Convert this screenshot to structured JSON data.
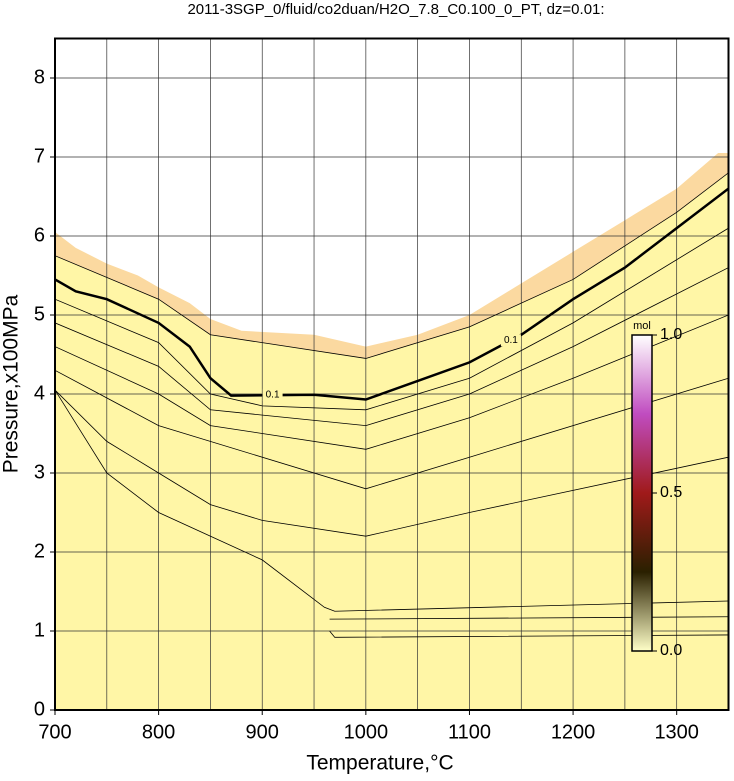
{
  "chart_data": {
    "type": "contour",
    "title": "2011-3SGP_0/fluid/co2duan/H2O_7.8_C0.100_0_PT, dz=0.01:",
    "x_label": "Temperature,°C",
    "y_label": "Pressure,x100MPa",
    "xlim": [
      700,
      1350
    ],
    "ylim": [
      0,
      8.5
    ],
    "xticks": [
      700,
      800,
      900,
      1000,
      1100,
      1200,
      1300
    ],
    "yticks": [
      0,
      1,
      2,
      3,
      4,
      5,
      6,
      7,
      8
    ],
    "grid": true,
    "xgrid_step": 50,
    "ygrid_step": 1,
    "region_color": "#fff6a6",
    "edge_color": "#fbd9a0",
    "line_color": "#000000",
    "boundary": {
      "x": [
        700,
        720,
        750,
        780,
        800,
        830,
        850,
        880,
        950,
        1000,
        1050,
        1100,
        1150,
        1200,
        1250,
        1300,
        1340,
        1350
      ],
      "y": [
        6.05,
        5.85,
        5.65,
        5.5,
        5.35,
        5.15,
        4.95,
        4.8,
        4.75,
        4.6,
        4.75,
        5.0,
        5.4,
        5.8,
        6.2,
        6.6,
        7.05,
        7.05
      ]
    },
    "contours": [
      {
        "label": "0.1",
        "bold": true,
        "x": [
          700,
          720,
          750,
          800,
          830,
          850,
          870,
          950,
          1000,
          1100,
          1150,
          1200,
          1250,
          1300,
          1350
        ],
        "y": [
          5.45,
          5.3,
          5.2,
          4.9,
          4.6,
          4.2,
          3.98,
          3.99,
          3.93,
          4.4,
          4.75,
          5.2,
          5.6,
          6.1,
          6.6
        ]
      },
      {
        "x": [
          700,
          800,
          850,
          1000,
          1100,
          1200,
          1300,
          1350
        ],
        "y": [
          5.75,
          5.2,
          4.75,
          4.45,
          4.85,
          5.45,
          6.3,
          6.8
        ]
      },
      {
        "x": [
          700,
          800,
          850,
          900,
          1000,
          1100,
          1200,
          1350
        ],
        "y": [
          5.2,
          4.65,
          4.0,
          3.85,
          3.8,
          4.2,
          4.9,
          6.1
        ]
      },
      {
        "x": [
          700,
          800,
          850,
          1000,
          1100,
          1200,
          1350
        ],
        "y": [
          4.9,
          4.35,
          3.8,
          3.6,
          4.0,
          4.6,
          5.6
        ]
      },
      {
        "x": [
          700,
          800,
          850,
          1000,
          1100,
          1200,
          1350
        ],
        "y": [
          4.6,
          4.0,
          3.6,
          3.3,
          3.7,
          4.2,
          5.0
        ]
      },
      {
        "x": [
          700,
          800,
          1000,
          1100,
          1350
        ],
        "y": [
          4.3,
          3.6,
          2.8,
          3.2,
          4.2
        ]
      },
      {
        "x": [
          700,
          750,
          800,
          850,
          900,
          1000,
          1100,
          1350
        ],
        "y": [
          4.05,
          3.4,
          3.0,
          2.6,
          2.4,
          2.2,
          2.5,
          3.2
        ]
      },
      {
        "x": [
          700,
          750,
          800,
          900,
          960,
          970,
          1350
        ],
        "y": [
          4.05,
          3.0,
          2.5,
          1.9,
          1.3,
          1.25,
          1.38
        ]
      },
      {
        "x": [
          965,
          970,
          1350
        ],
        "y": [
          1.0,
          0.92,
          0.95
        ]
      },
      {
        "x": [
          965,
          1350
        ],
        "y": [
          1.15,
          1.18
        ]
      }
    ],
    "colorbar": {
      "label": "mol",
      "lim": [
        0,
        1
      ],
      "ticks": [
        {
          "value": 0,
          "label": "0.0"
        },
        0.5,
        {
          "value": 1,
          "label": "1.0"
        }
      ],
      "colors": [
        "#ffffc8",
        "#2a2000",
        "#a01a1a",
        "#c04cc0",
        "#ffffff"
      ]
    }
  }
}
